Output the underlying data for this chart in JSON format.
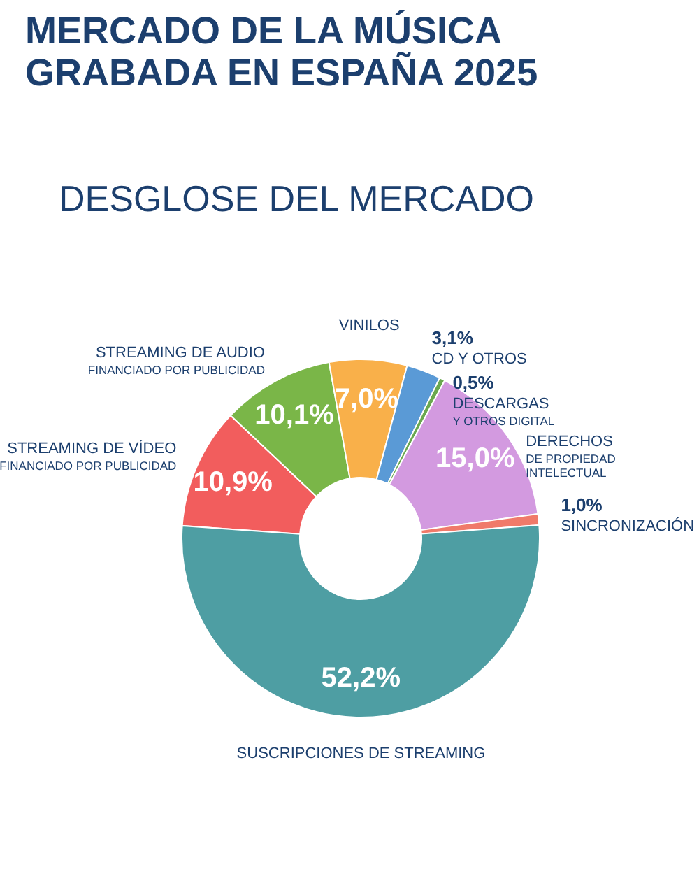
{
  "chart_data": {
    "type": "donut",
    "title": "MERCADO DE LA MÚSICA\nGRABADA EN ESPAÑA 2025",
    "subtitle": "DESGLOSE DEL MERCADO",
    "categories": [
      "STREAMING DE VÍDEO\nFINANCIADO POR PUBLICIDAD",
      "STREAMING DE AUDIO\nFINANCIADO POR PUBLICIDAD",
      "VINILOS",
      "CD Y OTROS",
      "DESCARGAS\nY OTROS DIGITAL",
      "DERECHOS\nDE PROPIEDAD\nINTELECTUAL",
      "SINCRONIZACIÓN",
      "SUSCRIPCIONES DE STREAMING"
    ],
    "values": [
      10.9,
      10.1,
      7.0,
      3.1,
      0.5,
      15.0,
      1.0,
      52.2
    ],
    "value_labels": [
      "10,9%",
      "10,1%",
      "7,0%",
      "3,1%",
      "0,5%",
      "15,0%",
      "1,0%",
      "52,2%"
    ],
    "colors": [
      "#f25d5d",
      "#7ab648",
      "#f9b04a",
      "#5a9ad6",
      "#6aa84f",
      "#d39ae0",
      "#f07a6a",
      "#4e9ea3"
    ]
  }
}
